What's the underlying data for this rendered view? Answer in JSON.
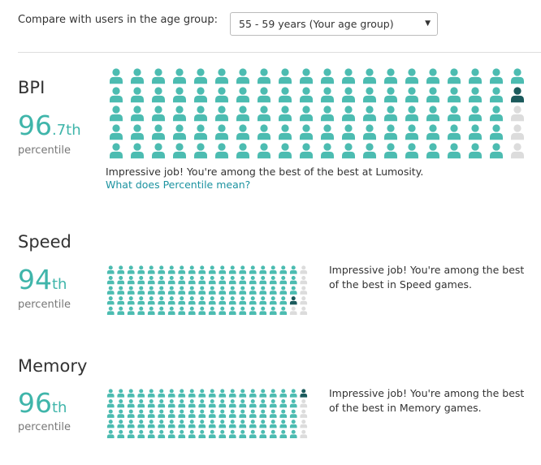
{
  "compare_label": "Compare with users in the age group:",
  "age_group_select": "55 - 59 years (Your age group)",
  "sections": [
    {
      "name": "BPI",
      "score": "96",
      "score_suffix": ".7th",
      "score_caption": "percentile",
      "message": "Impressive job! You're among the best of the best at Lumosity.",
      "link": "What does Percentile mean?",
      "grid": {
        "columns": 20,
        "rows": 5,
        "teal": 96
      }
    },
    {
      "name": "Speed",
      "score": "94",
      "score_suffix": "th",
      "score_caption": "percentile",
      "message_lines": [
        "Impressive job! You're among the best",
        "of the best in Speed games."
      ],
      "grid": {
        "columns": 20,
        "rows": 5,
        "teal": 93
      }
    },
    {
      "name": "Memory",
      "score": "96",
      "score_suffix": "th",
      "score_caption": "percentile",
      "message_lines": [
        "Impressive job! You're among the best",
        "of the best in Memory games."
      ],
      "grid": {
        "columns": 20,
        "rows": 5,
        "teal": 95
      }
    }
  ]
}
